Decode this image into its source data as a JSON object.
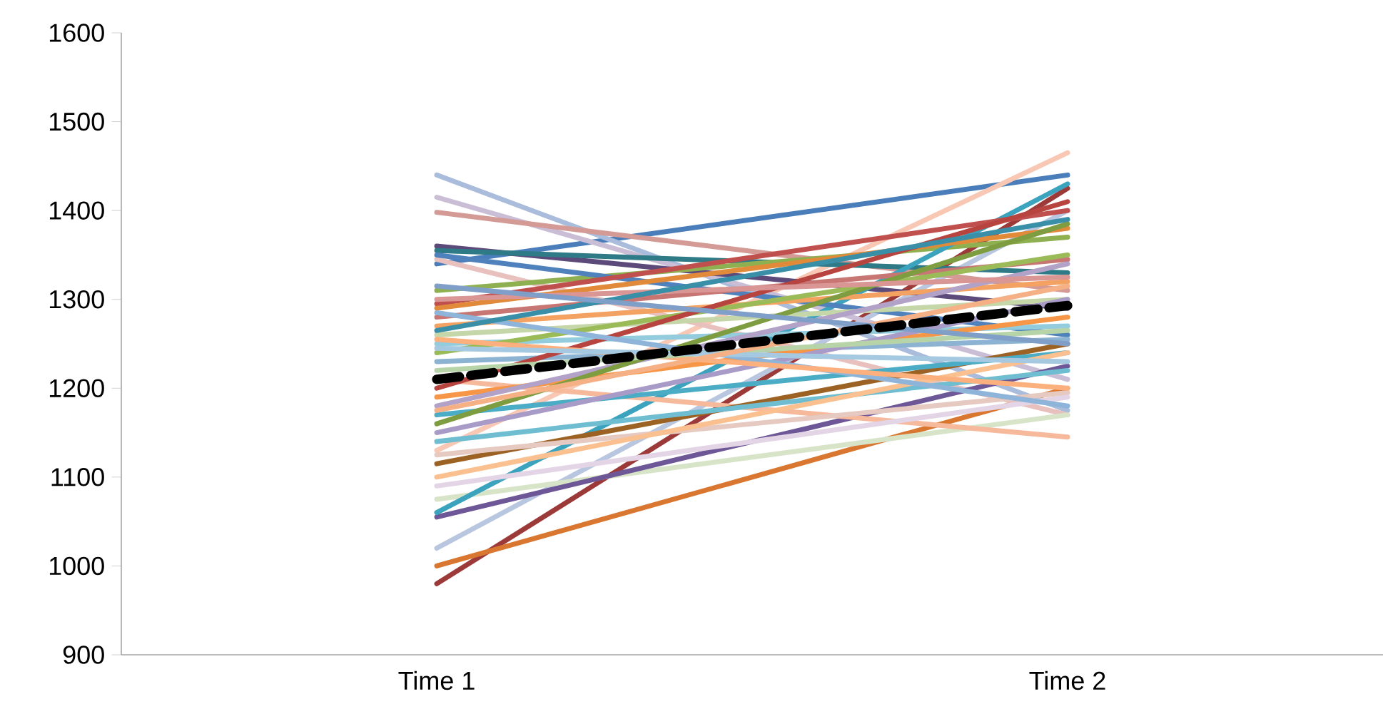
{
  "chart_data": {
    "type": "line",
    "categories": [
      "Time 1",
      "Time 2"
    ],
    "ylim": [
      900,
      1600
    ],
    "yticks": [
      900,
      1000,
      1100,
      1200,
      1300,
      1400,
      1500,
      1600
    ],
    "grid": false,
    "marker": "none",
    "line_style": "solid",
    "series": [
      {
        "color": "#4a7ebb",
        "values": [
          1340,
          1440
        ]
      },
      {
        "color": "#f9c8b4",
        "values": [
          1130,
          1465
        ]
      },
      {
        "color": "#9b3a38",
        "values": [
          980,
          1425
        ]
      },
      {
        "color": "#d9762f",
        "values": [
          1000,
          1200
        ]
      },
      {
        "color": "#b8c6e0",
        "values": [
          1020,
          1400
        ]
      },
      {
        "color": "#a9bcdc",
        "values": [
          1440,
          1175
        ]
      },
      {
        "color": "#c9bed6",
        "values": [
          1415,
          1210
        ]
      },
      {
        "color": "#d49a96",
        "values": [
          1398,
          1310
        ]
      },
      {
        "color": "#5c4a7a",
        "values": [
          1360,
          1290
        ]
      },
      {
        "color": "#2f7a87",
        "values": [
          1355,
          1330
        ]
      },
      {
        "color": "#e8c0bd",
        "values": [
          1345,
          1170
        ]
      },
      {
        "color": "#8fb050",
        "values": [
          1310,
          1370
        ]
      },
      {
        "color": "#d7e4c8",
        "values": [
          1075,
          1170
        ]
      },
      {
        "color": "#6e5796",
        "values": [
          1055,
          1225
        ]
      },
      {
        "color": "#3ba3bd",
        "values": [
          1060,
          1430
        ]
      },
      {
        "color": "#f6b99b",
        "values": [
          1210,
          1145
        ]
      },
      {
        "color": "#9c6224",
        "values": [
          1115,
          1250
        ]
      },
      {
        "color": "#4f81bd",
        "values": [
          1350,
          1260
        ]
      },
      {
        "color": "#c0504d",
        "values": [
          1295,
          1400
        ]
      },
      {
        "color": "#e08a3a",
        "values": [
          1290,
          1380
        ]
      },
      {
        "color": "#c87673",
        "values": [
          1280,
          1345
        ]
      },
      {
        "color": "#f4a261",
        "values": [
          1270,
          1320
        ]
      },
      {
        "color": "#c5d6a8",
        "values": [
          1260,
          1300
        ]
      },
      {
        "color": "#93cddd",
        "values": [
          1250,
          1270
        ]
      },
      {
        "color": "#9bbb59",
        "values": [
          1240,
          1350
        ]
      },
      {
        "color": "#8cb4d2",
        "values": [
          1230,
          1255
        ]
      },
      {
        "color": "#b8443f",
        "values": [
          1200,
          1410
        ]
      },
      {
        "color": "#f79646",
        "values": [
          1190,
          1280
        ]
      },
      {
        "color": "#b3a2c7",
        "values": [
          1180,
          1340
        ]
      },
      {
        "color": "#4bacc6",
        "values": [
          1170,
          1240
        ]
      },
      {
        "color": "#7e9c40",
        "values": [
          1160,
          1385
        ]
      },
      {
        "color": "#a99bc8",
        "values": [
          1150,
          1300
        ]
      },
      {
        "color": "#6fbdd1",
        "values": [
          1140,
          1220
        ]
      },
      {
        "color": "#e6c9c0",
        "values": [
          1125,
          1195
        ]
      },
      {
        "color": "#fac090",
        "values": [
          1100,
          1240
        ]
      },
      {
        "color": "#e3d4e6",
        "values": [
          1090,
          1190
        ]
      },
      {
        "color": "#8fb4d9",
        "values": [
          1285,
          1180
        ]
      },
      {
        "color": "#fcb07e",
        "values": [
          1255,
          1200
        ]
      },
      {
        "color": "#d99694",
        "values": [
          1300,
          1325
        ]
      },
      {
        "color": "#b7d3a8",
        "values": [
          1220,
          1265
        ]
      },
      {
        "color": "#a5c9e0",
        "values": [
          1245,
          1230
        ]
      },
      {
        "color": "#3a8fa8",
        "values": [
          1265,
          1390
        ]
      },
      {
        "color": "#f5b185",
        "values": [
          1175,
          1315
        ]
      },
      {
        "color": "#7f9fc8",
        "values": [
          1315,
          1250
        ]
      },
      {
        "color": "#000000",
        "values": [
          1210,
          1293
        ],
        "line_style": "dashed"
      }
    ]
  }
}
